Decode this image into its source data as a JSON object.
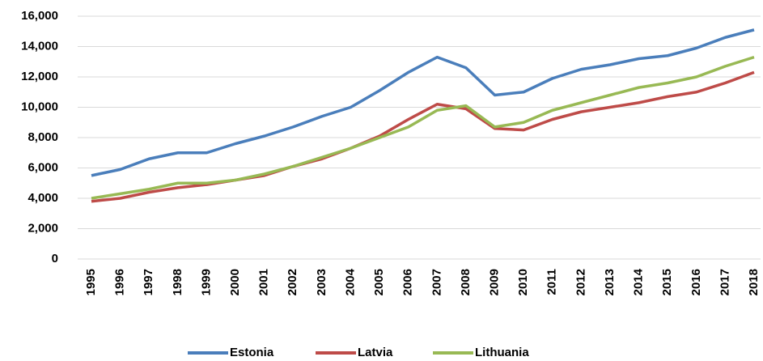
{
  "chart_data": {
    "type": "line",
    "categories": [
      "1995",
      "1996",
      "1997",
      "1998",
      "1999",
      "2000",
      "2001",
      "2002",
      "2003",
      "2004",
      "2005",
      "2006",
      "2007",
      "2008",
      "2009",
      "2010",
      "2011",
      "2012",
      "2013",
      "2014",
      "2015",
      "2016",
      "2017",
      "2018"
    ],
    "series": [
      {
        "name": "Estonia",
        "color": "#4a7ebb",
        "values": [
          5500,
          5900,
          6600,
          7000,
          7000,
          7600,
          8100,
          8700,
          9400,
          10000,
          11100,
          12300,
          13300,
          12600,
          10800,
          11000,
          11900,
          12500,
          12800,
          13200,
          13400,
          13900,
          14600,
          15100
        ]
      },
      {
        "name": "Latvia",
        "color": "#be4b48",
        "values": [
          3800,
          4000,
          4400,
          4700,
          4900,
          5200,
          5500,
          6100,
          6600,
          7300,
          8100,
          9200,
          10200,
          9900,
          8600,
          8500,
          9200,
          9700,
          10000,
          10300,
          10700,
          11000,
          11600,
          12300
        ]
      },
      {
        "name": "Lithuania",
        "color": "#98b954",
        "values": [
          4000,
          4300,
          4600,
          5000,
          5000,
          5200,
          5600,
          6100,
          6700,
          7300,
          8000,
          8700,
          9800,
          10100,
          8700,
          9000,
          9800,
          10300,
          10800,
          11300,
          11600,
          12000,
          12700,
          13300
        ]
      }
    ],
    "ylim": [
      0,
      16000
    ],
    "yticks": [
      0,
      {
        "value": 2000,
        "label": "2,000"
      },
      {
        "value": 4000,
        "label": "4,000"
      },
      {
        "value": 6000,
        "label": "6,000"
      },
      {
        "value": 8000,
        "label": "8,000"
      },
      {
        "value": 10000,
        "label": "10,000"
      },
      {
        "value": 12000,
        "label": "12,000"
      },
      {
        "value": 14000,
        "label": "14,000"
      },
      {
        "value": 16000,
        "label": "16,000"
      }
    ],
    "grid": true
  }
}
